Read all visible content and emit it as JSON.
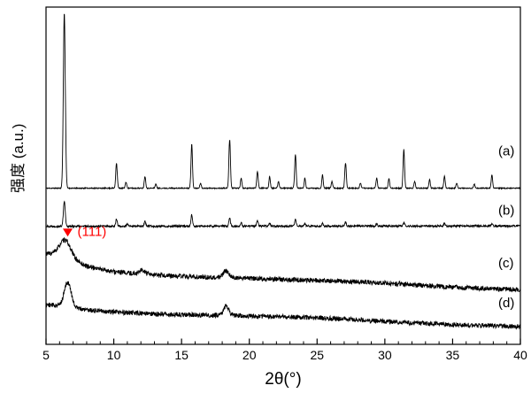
{
  "chart_data": {
    "type": "line",
    "title": "",
    "xlabel": "2θ(°)",
    "ylabel": "强度 (a.u.)",
    "xlim": [
      5,
      40
    ],
    "x_major_ticks": [
      5,
      10,
      15,
      20,
      25,
      30,
      35,
      40
    ],
    "x_minor_step": 1,
    "grid": false,
    "frame": true,
    "line_color": "#000000",
    "legend_position": "right-inline",
    "annotation": {
      "text": "(111)",
      "x": 6.6,
      "color": "#ff0000",
      "marker": "triangle-down",
      "target_series": "(c)"
    },
    "series": [
      {
        "name": "(a)",
        "kind": "crystalline-xrd-pattern",
        "seed": 11,
        "noise": 0.0015,
        "label_y": 0.574,
        "background": [
          [
            5,
            0.463
          ],
          [
            40,
            0.463
          ]
        ],
        "peaks": [
          [
            6.35,
            0.52,
            0.17
          ],
          [
            10.2,
            0.075,
            0.13
          ],
          [
            10.9,
            0.018,
            0.12
          ],
          [
            12.3,
            0.035,
            0.13
          ],
          [
            13.1,
            0.012,
            0.12
          ],
          [
            15.75,
            0.13,
            0.13
          ],
          [
            16.4,
            0.015,
            0.12
          ],
          [
            18.55,
            0.145,
            0.13
          ],
          [
            19.4,
            0.03,
            0.12
          ],
          [
            20.6,
            0.05,
            0.13
          ],
          [
            21.5,
            0.035,
            0.12
          ],
          [
            22.15,
            0.02,
            0.12
          ],
          [
            23.4,
            0.1,
            0.13
          ],
          [
            24.1,
            0.03,
            0.12
          ],
          [
            25.4,
            0.04,
            0.12
          ],
          [
            26.1,
            0.02,
            0.12
          ],
          [
            27.1,
            0.075,
            0.13
          ],
          [
            28.2,
            0.015,
            0.12
          ],
          [
            29.4,
            0.03,
            0.12
          ],
          [
            30.3,
            0.028,
            0.12
          ],
          [
            31.4,
            0.115,
            0.13
          ],
          [
            32.2,
            0.02,
            0.12
          ],
          [
            33.3,
            0.025,
            0.12
          ],
          [
            34.4,
            0.035,
            0.12
          ],
          [
            35.3,
            0.015,
            0.12
          ],
          [
            36.6,
            0.012,
            0.12
          ],
          [
            37.9,
            0.04,
            0.12
          ]
        ]
      },
      {
        "name": "(b)",
        "kind": "weak-crystalline-xrd-pattern",
        "seed": 22,
        "noise": 0.0028,
        "label_y": 0.397,
        "background": [
          [
            5,
            0.35
          ],
          [
            40,
            0.351
          ]
        ],
        "peaks": [
          [
            6.35,
            0.075,
            0.16
          ],
          [
            10.2,
            0.022,
            0.13
          ],
          [
            11.0,
            0.008,
            0.12
          ],
          [
            12.3,
            0.016,
            0.13
          ],
          [
            15.75,
            0.034,
            0.13
          ],
          [
            18.55,
            0.024,
            0.13
          ],
          [
            19.4,
            0.012,
            0.12
          ],
          [
            20.6,
            0.016,
            0.13
          ],
          [
            21.5,
            0.009,
            0.12
          ],
          [
            23.4,
            0.019,
            0.13
          ],
          [
            24.1,
            0.007,
            0.12
          ],
          [
            25.4,
            0.009,
            0.12
          ],
          [
            27.1,
            0.011,
            0.13
          ],
          [
            29.4,
            0.007,
            0.12
          ],
          [
            31.4,
            0.011,
            0.13
          ],
          [
            34.4,
            0.007,
            0.12
          ],
          [
            37.9,
            0.005,
            0.12
          ]
        ]
      },
      {
        "name": "(c)",
        "kind": "amorphous-broad-pattern",
        "seed": 33,
        "noise": 0.007,
        "label_y": 0.242,
        "background": [
          [
            5,
            0.27
          ],
          [
            6.5,
            0.258
          ],
          [
            8,
            0.232
          ],
          [
            10,
            0.215
          ],
          [
            13,
            0.205
          ],
          [
            16,
            0.2
          ],
          [
            19,
            0.197
          ],
          [
            22,
            0.193
          ],
          [
            26,
            0.188
          ],
          [
            30,
            0.182
          ],
          [
            34,
            0.172
          ],
          [
            37,
            0.166
          ],
          [
            40,
            0.162
          ]
        ],
        "peaks": [
          [
            6.4,
            0.05,
            1.0
          ],
          [
            12.1,
            0.012,
            0.5
          ],
          [
            18.3,
            0.02,
            0.5
          ]
        ]
      },
      {
        "name": "(d)",
        "kind": "amorphous-broad-pattern",
        "seed": 44,
        "noise": 0.007,
        "label_y": 0.124,
        "background": [
          [
            5,
            0.118
          ],
          [
            6.6,
            0.112
          ],
          [
            8,
            0.102
          ],
          [
            10,
            0.096
          ],
          [
            13,
            0.09
          ],
          [
            16,
            0.087
          ],
          [
            18.5,
            0.086
          ],
          [
            21,
            0.083
          ],
          [
            24,
            0.08
          ],
          [
            27,
            0.075
          ],
          [
            30,
            0.068
          ],
          [
            33,
            0.062
          ],
          [
            36,
            0.057
          ],
          [
            40,
            0.053
          ]
        ],
        "peaks": [
          [
            6.6,
            0.072,
            0.6
          ],
          [
            18.3,
            0.028,
            0.45
          ]
        ]
      }
    ]
  }
}
